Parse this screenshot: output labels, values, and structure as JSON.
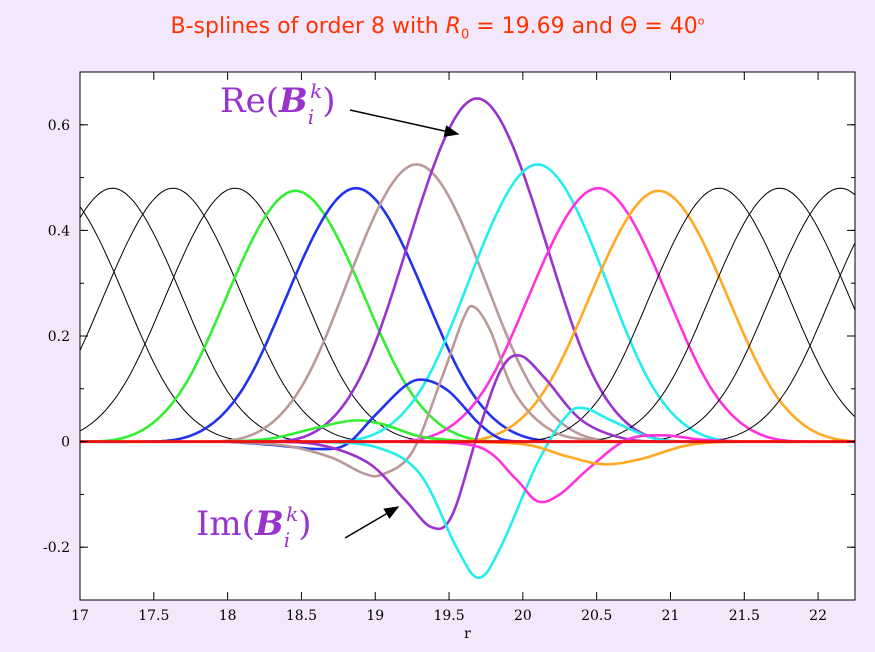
{
  "title": {
    "prefix": "B-splines of order 8 with ",
    "r_sym": "R",
    "r_sub": "0",
    "mid": " = 19.69 and Θ = 40",
    "deg": "o"
  },
  "annotations": {
    "re": {
      "func": "Re(",
      "base": "B",
      "sub": "i",
      "sup": "k",
      "close": ")"
    },
    "im": {
      "func": "Im(",
      "base": "B",
      "sub": "i",
      "sup": "k",
      "close": ")"
    }
  },
  "chart_data": {
    "type": "line",
    "title": "B-splines of order 8 with R0 = 19.69 and Θ = 40o",
    "xlabel": "r",
    "ylabel": "",
    "xlim": [
      17.0,
      22.25
    ],
    "ylim": [
      -0.3,
      0.7
    ],
    "xticks": [
      "17",
      "17.5",
      "18",
      "18.5",
      "19",
      "19.5",
      "20",
      "20.5",
      "21",
      "21.5",
      "22"
    ],
    "yticks": [
      "-0.2",
      "0",
      "0.2",
      "0.4",
      "0.6"
    ],
    "grid": false,
    "series": [
      {
        "color": "#000000",
        "style": "real-bump",
        "peak_x": 16.83,
        "peak_y": 0.48
      },
      {
        "color": "#000000",
        "style": "real-bump",
        "peak_x": 17.22,
        "peak_y": 0.48
      },
      {
        "color": "#000000",
        "style": "real-bump",
        "peak_x": 17.63,
        "peak_y": 0.48
      },
      {
        "color": "#000000",
        "style": "real-bump",
        "peak_x": 18.05,
        "peak_y": 0.48
      },
      {
        "color": "#33ee33",
        "style": "real-bump",
        "peak_x": 18.46,
        "peak_y": 0.475
      },
      {
        "color": "#2233ee",
        "style": "real-bump",
        "peak_x": 18.87,
        "peak_y": 0.48
      },
      {
        "color": "#bb9999",
        "style": "real-bump",
        "peak_x": 19.28,
        "peak_y": 0.525
      },
      {
        "color": "#9933cc",
        "style": "real-bump",
        "peak_x": 19.69,
        "peak_y": 0.65
      },
      {
        "color": "#22eeee",
        "style": "real-bump",
        "peak_x": 20.1,
        "peak_y": 0.525
      },
      {
        "color": "#ff33dd",
        "style": "real-bump",
        "peak_x": 20.51,
        "peak_y": 0.48
      },
      {
        "color": "#ffaa22",
        "style": "real-bump",
        "peak_x": 20.92,
        "peak_y": 0.475
      },
      {
        "color": "#000000",
        "style": "real-bump",
        "peak_x": 21.33,
        "peak_y": 0.48
      },
      {
        "color": "#000000",
        "style": "real-bump",
        "peak_x": 21.74,
        "peak_y": 0.48
      },
      {
        "color": "#000000",
        "style": "real-bump",
        "peak_x": 22.15,
        "peak_y": 0.48
      },
      {
        "color": "#000000",
        "style": "real-bump",
        "peak_x": 22.56,
        "peak_y": 0.48
      },
      {
        "color": "#33ee33",
        "style": "imag",
        "points": [
          [
            18.0,
            0
          ],
          [
            18.3,
            0.006
          ],
          [
            18.6,
            0.026
          ],
          [
            18.85,
            0.04
          ],
          [
            19.05,
            0.033
          ],
          [
            19.3,
            0.01
          ],
          [
            19.55,
            0.002
          ],
          [
            19.7,
            0.0
          ],
          [
            19.9,
            0.0
          ]
        ]
      },
      {
        "color": "#2233ee",
        "style": "imag",
        "points": [
          [
            18.0,
            0
          ],
          [
            18.3,
            -0.006
          ],
          [
            18.6,
            -0.014
          ],
          [
            18.8,
            -0.006
          ],
          [
            19.0,
            0.05
          ],
          [
            19.2,
            0.105
          ],
          [
            19.33,
            0.117
          ],
          [
            19.5,
            0.095
          ],
          [
            19.7,
            0.035
          ],
          [
            19.85,
            0.005
          ],
          [
            20.0,
            0.0
          ]
        ]
      },
      {
        "color": "#bb9999",
        "style": "imag",
        "points": [
          [
            18.0,
            0
          ],
          [
            18.4,
            -0.008
          ],
          [
            18.7,
            -0.03
          ],
          [
            18.92,
            -0.06
          ],
          [
            19.05,
            -0.062
          ],
          [
            19.25,
            -0.02
          ],
          [
            19.45,
            0.12
          ],
          [
            19.6,
            0.235
          ],
          [
            19.67,
            0.255
          ],
          [
            19.78,
            0.21
          ],
          [
            19.95,
            0.09
          ],
          [
            20.2,
            0.02
          ],
          [
            20.5,
            0.002
          ],
          [
            20.8,
            0
          ]
        ]
      },
      {
        "color": "#9933cc",
        "style": "imag",
        "points": [
          [
            18.2,
            0
          ],
          [
            18.6,
            -0.005
          ],
          [
            18.95,
            -0.04
          ],
          [
            19.2,
            -0.11
          ],
          [
            19.38,
            -0.162
          ],
          [
            19.52,
            -0.14
          ],
          [
            19.7,
            0.02
          ],
          [
            19.85,
            0.135
          ],
          [
            19.98,
            0.163
          ],
          [
            20.15,
            0.12
          ],
          [
            20.4,
            0.04
          ],
          [
            20.7,
            0.005
          ],
          [
            21.0,
            0
          ]
        ]
      },
      {
        "color": "#22eeee",
        "style": "imag",
        "points": [
          [
            18.6,
            0
          ],
          [
            19.0,
            -0.01
          ],
          [
            19.3,
            -0.06
          ],
          [
            19.55,
            -0.2
          ],
          [
            19.7,
            -0.258
          ],
          [
            19.85,
            -0.2
          ],
          [
            20.1,
            -0.04
          ],
          [
            20.3,
            0.05
          ],
          [
            20.42,
            0.063
          ],
          [
            20.6,
            0.04
          ],
          [
            20.9,
            0.005
          ],
          [
            21.2,
            0
          ]
        ]
      },
      {
        "color": "#ff33dd",
        "style": "imag",
        "points": [
          [
            19.2,
            0
          ],
          [
            19.7,
            -0.01
          ],
          [
            19.95,
            -0.07
          ],
          [
            20.1,
            -0.113
          ],
          [
            20.25,
            -0.1
          ],
          [
            20.45,
            -0.05
          ],
          [
            20.7,
            0.003
          ],
          [
            20.95,
            0.012
          ],
          [
            21.2,
            0.004
          ],
          [
            21.5,
            0
          ]
        ]
      },
      {
        "color": "#ffaa22",
        "style": "imag",
        "points": [
          [
            19.5,
            0
          ],
          [
            20.0,
            -0.005
          ],
          [
            20.3,
            -0.028
          ],
          [
            20.55,
            -0.043
          ],
          [
            20.8,
            -0.033
          ],
          [
            21.1,
            -0.008
          ],
          [
            21.4,
            0
          ],
          [
            21.8,
            0
          ]
        ]
      },
      {
        "color": "#ee1111",
        "style": "zero-line",
        "points": [
          [
            17.0,
            0
          ],
          [
            22.25,
            0
          ]
        ]
      }
    ]
  }
}
